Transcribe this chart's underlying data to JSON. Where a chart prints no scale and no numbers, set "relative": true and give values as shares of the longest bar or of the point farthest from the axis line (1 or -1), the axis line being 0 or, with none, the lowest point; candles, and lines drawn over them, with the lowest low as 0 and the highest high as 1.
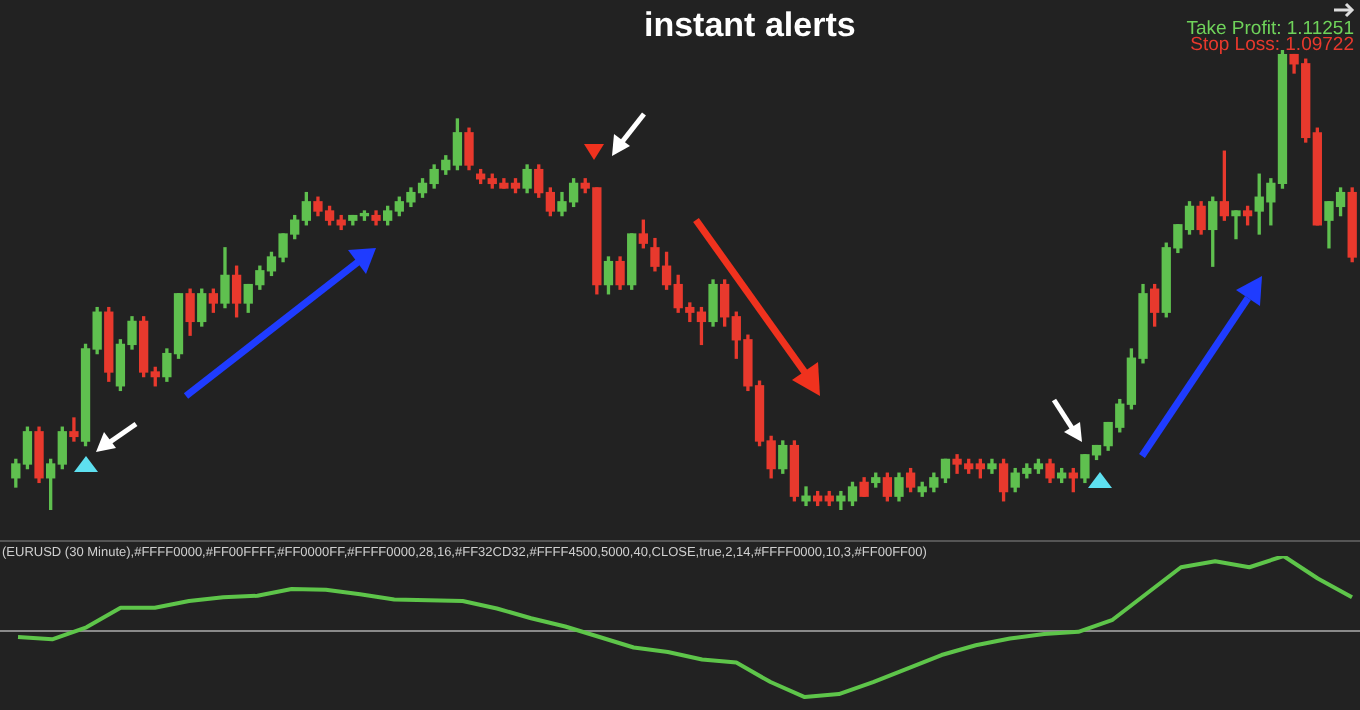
{
  "chart_data": [
    {
      "type": "candlestick",
      "relative": true,
      "categories": [
        null,
        null,
        null,
        null,
        null,
        null,
        null,
        null,
        null,
        null,
        null,
        null,
        null,
        null,
        null,
        null,
        null,
        null,
        null,
        null,
        null,
        null,
        null,
        null,
        null,
        null,
        null,
        null,
        null,
        null,
        null,
        null,
        null,
        null,
        null,
        null,
        null,
        null,
        null,
        null,
        null,
        null,
        null,
        null,
        null,
        null,
        null,
        null,
        null,
        null,
        null,
        null,
        null,
        null,
        null,
        null,
        null,
        null,
        null,
        null,
        null,
        null,
        null,
        null,
        null,
        null,
        null,
        null,
        null,
        null,
        null,
        null,
        null,
        null,
        null,
        null,
        null,
        null,
        null,
        null,
        null,
        null,
        null,
        null,
        null,
        null,
        null,
        null,
        null,
        null,
        null,
        null,
        null,
        null,
        null,
        null,
        null,
        null,
        null,
        null,
        null,
        null,
        null,
        null,
        null,
        null,
        null,
        null,
        null,
        null,
        null,
        null,
        null,
        null,
        null,
        null
      ],
      "colors": [
        "#5fc04f",
        "#5fc04f",
        "#e8392d",
        "#5fc04f",
        "#5fc04f",
        "#e8392d",
        "#5fc04f",
        "#5fc04f",
        "#e8392d",
        "#5fc04f",
        "#5fc04f",
        "#e8392d",
        "#e8392d",
        "#5fc04f",
        "#5fc04f",
        "#e8392d",
        "#5fc04f",
        "#e8392d",
        "#5fc04f",
        "#e8392d",
        "#5fc04f",
        "#5fc04f",
        "#5fc04f",
        "#5fc04f",
        "#5fc04f",
        "#5fc04f",
        "#e8392d",
        "#e8392d",
        "#e8392d",
        "#5fc04f",
        "#5fc04f",
        "#e8392d",
        "#5fc04f",
        "#5fc04f",
        "#5fc04f",
        "#5fc04f",
        "#5fc04f",
        "#5fc04f",
        "#5fc04f",
        "#e8392d",
        "#e8392d",
        "#e8392d",
        "#e8392d",
        "#e8392d",
        "#5fc04f",
        "#e8392d",
        "#e8392d",
        "#5fc04f",
        "#5fc04f",
        "#e8392d",
        "#e8392d",
        "#5fc04f",
        "#e8392d",
        "#5fc04f",
        "#e8392d",
        "#e8392d",
        "#e8392d",
        "#e8392d",
        "#e8392d",
        "#e8392d",
        "#5fc04f",
        "#e8392d",
        "#e8392d",
        "#e8392d",
        "#e8392d",
        "#e8392d",
        "#5fc04f",
        "#e8392d",
        "#5fc04f",
        "#e8392d",
        "#e8392d",
        "#5fc04f",
        "#5fc04f",
        "#e8392d",
        "#5fc04f",
        "#e8392d",
        "#5fc04f",
        "#e8392d",
        "#5fc04f",
        "#5fc04f",
        "#5fc04f",
        "#e8392d",
        "#e8392d",
        "#e8392d",
        "#5fc04f",
        "#e8392d",
        "#5fc04f",
        "#5fc04f",
        "#5fc04f",
        "#e8392d",
        "#5fc04f",
        "#e8392d",
        "#5fc04f",
        "#5fc04f",
        "#5fc04f",
        "#5fc04f",
        "#5fc04f",
        "#5fc04f",
        "#e8392d",
        "#5fc04f",
        "#5fc04f",
        "#5fc04f",
        "#e8392d",
        "#5fc04f",
        "#e8392d",
        "#5fc04f",
        "#e8392d",
        "#5fc04f",
        "#5fc04f",
        "#5fc04f",
        "#e8392d",
        "#e8392d",
        "#e8392d",
        "#5fc04f",
        "#5fc04f",
        "#e8392d"
      ],
      "ohlc": [
        [
          0.07,
          0.11,
          0.05,
          0.1
        ],
        [
          0.1,
          0.18,
          0.09,
          0.17
        ],
        [
          0.17,
          0.18,
          0.06,
          0.07
        ],
        [
          0.07,
          0.11,
          0.0,
          0.1
        ],
        [
          0.1,
          0.18,
          0.09,
          0.17
        ],
        [
          0.17,
          0.2,
          0.15,
          0.16
        ],
        [
          0.15,
          0.36,
          0.14,
          0.35
        ],
        [
          0.35,
          0.44,
          0.34,
          0.43
        ],
        [
          0.43,
          0.44,
          0.28,
          0.3
        ],
        [
          0.27,
          0.37,
          0.26,
          0.36
        ],
        [
          0.36,
          0.42,
          0.35,
          0.41
        ],
        [
          0.41,
          0.42,
          0.29,
          0.3
        ],
        [
          0.3,
          0.31,
          0.27,
          0.29
        ],
        [
          0.29,
          0.35,
          0.28,
          0.34
        ],
        [
          0.34,
          0.47,
          0.33,
          0.47
        ],
        [
          0.47,
          0.48,
          0.38,
          0.41
        ],
        [
          0.41,
          0.48,
          0.4,
          0.47
        ],
        [
          0.47,
          0.48,
          0.43,
          0.45
        ],
        [
          0.45,
          0.57,
          0.44,
          0.51
        ],
        [
          0.51,
          0.53,
          0.42,
          0.45
        ],
        [
          0.45,
          0.49,
          0.43,
          0.49
        ],
        [
          0.49,
          0.53,
          0.48,
          0.52
        ],
        [
          0.52,
          0.56,
          0.51,
          0.55
        ],
        [
          0.55,
          0.6,
          0.54,
          0.6
        ],
        [
          0.6,
          0.64,
          0.59,
          0.63
        ],
        [
          0.63,
          0.69,
          0.62,
          0.67
        ],
        [
          0.67,
          0.68,
          0.64,
          0.65
        ],
        [
          0.65,
          0.66,
          0.62,
          0.63
        ],
        [
          0.63,
          0.64,
          0.61,
          0.62
        ],
        [
          0.63,
          0.64,
          0.62,
          0.64
        ],
        [
          0.64,
          0.65,
          0.63,
          0.64
        ],
        [
          0.64,
          0.65,
          0.62,
          0.63
        ],
        [
          0.63,
          0.66,
          0.62,
          0.65
        ],
        [
          0.65,
          0.68,
          0.64,
          0.67
        ],
        [
          0.67,
          0.7,
          0.66,
          0.69
        ],
        [
          0.69,
          0.72,
          0.68,
          0.71
        ],
        [
          0.71,
          0.75,
          0.7,
          0.74
        ],
        [
          0.74,
          0.77,
          0.73,
          0.76
        ],
        [
          0.75,
          0.85,
          0.74,
          0.82
        ],
        [
          0.82,
          0.83,
          0.74,
          0.75
        ],
        [
          0.73,
          0.74,
          0.71,
          0.72
        ],
        [
          0.72,
          0.73,
          0.7,
          0.71
        ],
        [
          0.71,
          0.72,
          0.7,
          0.7
        ],
        [
          0.71,
          0.72,
          0.69,
          0.7
        ],
        [
          0.7,
          0.75,
          0.69,
          0.74
        ],
        [
          0.74,
          0.75,
          0.68,
          0.69
        ],
        [
          0.69,
          0.7,
          0.64,
          0.65
        ],
        [
          0.65,
          0.69,
          0.64,
          0.67
        ],
        [
          0.67,
          0.72,
          0.66,
          0.71
        ],
        [
          0.71,
          0.72,
          0.69,
          0.7
        ],
        [
          0.7,
          0.7,
          0.47,
          0.49
        ],
        [
          0.49,
          0.55,
          0.47,
          0.54
        ],
        [
          0.54,
          0.55,
          0.48,
          0.49
        ],
        [
          0.49,
          0.6,
          0.48,
          0.6
        ],
        [
          0.6,
          0.63,
          0.57,
          0.58
        ],
        [
          0.57,
          0.59,
          0.52,
          0.53
        ],
        [
          0.53,
          0.56,
          0.48,
          0.49
        ],
        [
          0.49,
          0.51,
          0.43,
          0.44
        ],
        [
          0.44,
          0.45,
          0.41,
          0.43
        ],
        [
          0.43,
          0.44,
          0.36,
          0.41
        ],
        [
          0.41,
          0.5,
          0.4,
          0.49
        ],
        [
          0.49,
          0.5,
          0.4,
          0.42
        ],
        [
          0.42,
          0.43,
          0.33,
          0.37
        ],
        [
          0.37,
          0.38,
          0.26,
          0.27
        ],
        [
          0.27,
          0.28,
          0.14,
          0.15
        ],
        [
          0.15,
          0.16,
          0.07,
          0.09
        ],
        [
          0.09,
          0.15,
          0.08,
          0.14
        ],
        [
          0.14,
          0.15,
          0.02,
          0.03
        ],
        [
          0.02,
          0.05,
          0.01,
          0.03
        ],
        [
          0.03,
          0.04,
          0.01,
          0.02
        ],
        [
          0.03,
          0.04,
          0.01,
          0.02
        ],
        [
          0.02,
          0.04,
          0.0,
          0.03
        ],
        [
          0.02,
          0.06,
          0.01,
          0.05
        ],
        [
          0.06,
          0.07,
          0.03,
          0.03
        ],
        [
          0.06,
          0.08,
          0.05,
          0.07
        ],
        [
          0.07,
          0.08,
          0.02,
          0.03
        ],
        [
          0.03,
          0.08,
          0.02,
          0.07
        ],
        [
          0.08,
          0.09,
          0.04,
          0.05
        ],
        [
          0.04,
          0.06,
          0.03,
          0.05
        ],
        [
          0.05,
          0.08,
          0.04,
          0.07
        ],
        [
          0.07,
          0.11,
          0.06,
          0.11
        ],
        [
          0.11,
          0.12,
          0.08,
          0.1
        ],
        [
          0.1,
          0.11,
          0.08,
          0.09
        ],
        [
          0.1,
          0.11,
          0.07,
          0.09
        ],
        [
          0.09,
          0.11,
          0.08,
          0.1
        ],
        [
          0.1,
          0.11,
          0.02,
          0.04
        ],
        [
          0.05,
          0.09,
          0.04,
          0.08
        ],
        [
          0.08,
          0.1,
          0.07,
          0.09
        ],
        [
          0.09,
          0.11,
          0.08,
          0.1
        ],
        [
          0.1,
          0.11,
          0.06,
          0.07
        ],
        [
          0.07,
          0.09,
          0.06,
          0.08
        ],
        [
          0.08,
          0.09,
          0.04,
          0.07
        ],
        [
          0.07,
          0.12,
          0.06,
          0.12
        ],
        [
          0.12,
          0.14,
          0.11,
          0.14
        ],
        [
          0.14,
          0.19,
          0.13,
          0.19
        ],
        [
          0.18,
          0.24,
          0.17,
          0.23
        ],
        [
          0.23,
          0.35,
          0.22,
          0.33
        ],
        [
          0.33,
          0.49,
          0.32,
          0.47
        ],
        [
          0.48,
          0.49,
          0.4,
          0.43
        ],
        [
          0.43,
          0.58,
          0.42,
          0.57
        ],
        [
          0.57,
          0.62,
          0.56,
          0.62
        ],
        [
          0.61,
          0.67,
          0.6,
          0.66
        ],
        [
          0.66,
          0.67,
          0.6,
          0.61
        ],
        [
          0.61,
          0.68,
          0.53,
          0.67
        ],
        [
          0.67,
          0.78,
          0.63,
          0.64
        ],
        [
          0.64,
          0.65,
          0.59,
          0.65
        ],
        [
          0.65,
          0.66,
          0.62,
          0.64
        ],
        [
          0.65,
          0.73,
          0.6,
          0.68
        ],
        [
          0.67,
          0.72,
          0.62,
          0.71
        ],
        [
          0.71,
          1.0,
          0.7,
          0.99
        ],
        [
          0.99,
          0.99,
          0.95,
          0.97
        ],
        [
          0.97,
          0.98,
          0.8,
          0.81
        ],
        [
          0.82,
          0.83,
          0.62,
          0.62
        ],
        [
          0.63,
          0.67,
          0.57,
          0.67
        ],
        [
          0.66,
          0.7,
          0.64,
          0.69
        ],
        [
          0.69,
          0.7,
          0.54,
          0.55
        ]
      ],
      "annotations": [
        "instant alerts",
        "Take Profit: 1.11251",
        "Stop Loss: 1.09722"
      ]
    },
    {
      "type": "line",
      "relative": true,
      "title": "(EURUSD (30 Minute),#FFFF0000,#FF00FFFF,#FF0000FF,#FFFF0000,28,16,#FF32CD32,#FFFF4500,5000,40,CLOSE,true,2,14,#FFFF0000,10,3,#FF00FF00)",
      "categories": [
        null,
        null,
        null,
        null,
        null,
        null,
        null,
        null,
        null,
        null,
        null,
        null,
        null,
        null,
        null,
        null,
        null,
        null,
        null,
        null,
        null,
        null,
        null,
        null,
        null,
        null,
        null,
        null,
        null,
        null,
        null,
        null,
        null,
        null,
        null,
        null,
        null,
        null,
        null,
        null
      ],
      "series": [
        {
          "type": "line",
          "color": "#5ec54a",
          "values": [
            -0.08,
            -0.11,
            0.05,
            0.31,
            0.31,
            0.4,
            0.45,
            0.47,
            0.56,
            0.55,
            0.49,
            0.42,
            0.41,
            0.4,
            0.3,
            0.17,
            0.06,
            -0.08,
            -0.22,
            -0.28,
            -0.38,
            -0.42,
            -0.68,
            -0.88,
            -0.84,
            -0.68,
            -0.5,
            -0.32,
            -0.19,
            -0.1,
            -0.04,
            -0.01,
            0.15,
            0.5,
            0.85,
            0.93,
            0.85,
            1.0,
            0.7,
            0.45
          ]
        }
      ]
    }
  ]
}
